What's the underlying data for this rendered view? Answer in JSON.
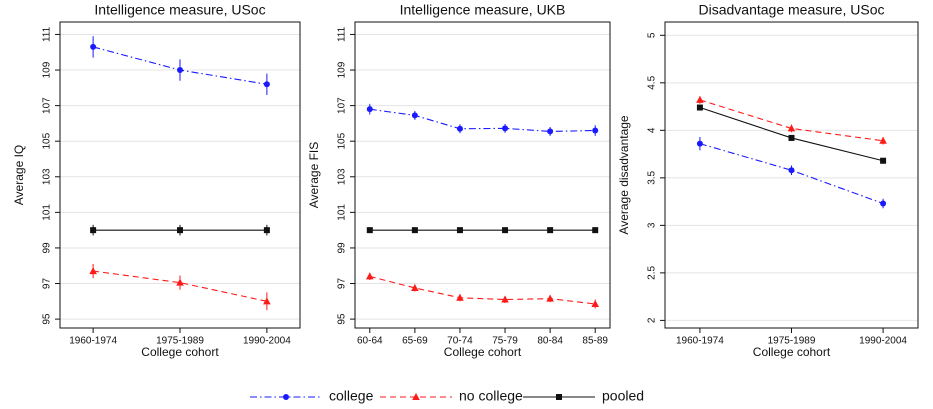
{
  "chart_data": [
    {
      "type": "line",
      "title": "Intelligence measure, USoc",
      "x_label": "College cohort",
      "y_label": "Average IQ",
      "categories": [
        "1960-1974",
        "1975-1989",
        "1990-2004"
      ],
      "ylim": [
        94.5,
        111.7
      ],
      "yticks": [
        95,
        97,
        99,
        101,
        103,
        105,
        107,
        109,
        111
      ],
      "grid": true,
      "series": [
        {
          "name": "college",
          "color": "#1a1aff",
          "marker": "circle",
          "line_style": "dash-dot",
          "values": [
            110.3,
            109.0,
            108.2
          ],
          "errors": [
            0.6,
            0.6,
            0.6
          ]
        },
        {
          "name": "no college",
          "color": "#ff1a1a",
          "marker": "triangle",
          "line_style": "dash",
          "values": [
            97.7,
            97.05,
            96.0
          ],
          "errors": [
            0.4,
            0.4,
            0.5
          ]
        },
        {
          "name": "pooled",
          "color": "#111111",
          "marker": "square",
          "line_style": "solid",
          "values": [
            100,
            100,
            100
          ],
          "errors": [
            0.3,
            0.3,
            0.3
          ]
        }
      ]
    },
    {
      "type": "line",
      "title": "Intelligence measure, UKB",
      "x_label": "College cohort",
      "y_label": "Average FIS",
      "categories": [
        "60-64",
        "65-69",
        "70-74",
        "75-79",
        "80-84",
        "85-89"
      ],
      "ylim": [
        94.5,
        111.7
      ],
      "yticks": [
        95,
        97,
        99,
        101,
        103,
        105,
        107,
        109,
        111
      ],
      "grid": true,
      "series": [
        {
          "name": "college",
          "color": "#1a1aff",
          "marker": "circle",
          "line_style": "dash-dot",
          "values": [
            106.8,
            106.45,
            105.7,
            105.72,
            105.55,
            105.6
          ],
          "errors": [
            0.3,
            0.25,
            0.25,
            0.25,
            0.25,
            0.3
          ]
        },
        {
          "name": "no college",
          "color": "#ff1a1a",
          "marker": "triangle",
          "line_style": "dash",
          "values": [
            97.4,
            96.75,
            96.2,
            96.1,
            96.15,
            95.85
          ],
          "errors": [
            0.2,
            0.2,
            0.2,
            0.2,
            0.2,
            0.25
          ]
        },
        {
          "name": "pooled",
          "color": "#111111",
          "marker": "square",
          "line_style": "solid",
          "values": [
            100,
            100,
            100,
            100,
            100,
            100
          ],
          "errors": [
            0.05,
            0.05,
            0.05,
            0.05,
            0.05,
            0.05
          ]
        }
      ]
    },
    {
      "type": "line",
      "title": "Disadvantage measure, USoc",
      "x_label": "College cohort",
      "y_label": "Average disadvantage",
      "categories": [
        "1960-1974",
        "1975-1989",
        "1990-2004"
      ],
      "ylim": [
        1.92,
        5.14
      ],
      "yticks": [
        2,
        2.5,
        3,
        3.5,
        4,
        4.5,
        5
      ],
      "grid": true,
      "series": [
        {
          "name": "college",
          "color": "#1a1aff",
          "marker": "circle",
          "line_style": "dash-dot",
          "values": [
            3.86,
            3.58,
            3.23
          ],
          "errors": [
            0.07,
            0.05,
            0.05
          ]
        },
        {
          "name": "no college",
          "color": "#ff1a1a",
          "marker": "triangle",
          "line_style": "dash",
          "values": [
            4.32,
            4.02,
            3.89
          ],
          "errors": [
            0.04,
            0.04,
            0.04
          ]
        },
        {
          "name": "pooled",
          "color": "#111111",
          "marker": "square",
          "line_style": "solid",
          "values": [
            4.24,
            3.92,
            3.68
          ],
          "errors": [
            0.03,
            0.03,
            0.03
          ]
        }
      ]
    }
  ]
}
